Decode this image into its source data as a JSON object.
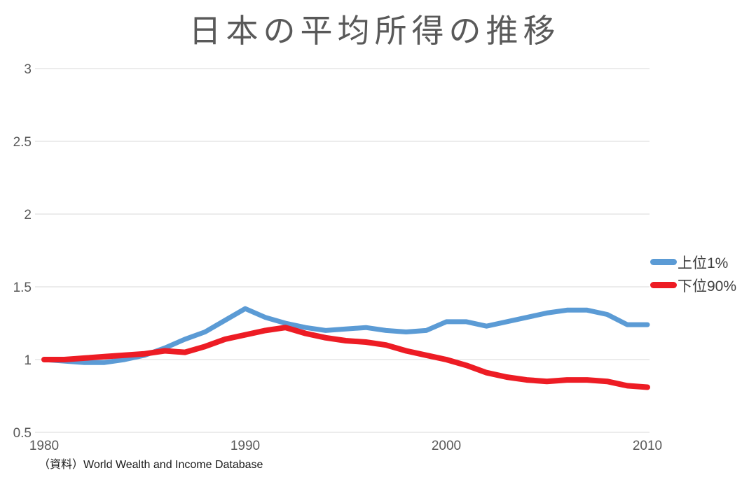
{
  "title": "日本の平均所得の推移",
  "source_note": "（資料）World Wealth and Income Database",
  "legend": {
    "items": [
      {
        "label": "上位1%",
        "color": "#5B9BD5"
      },
      {
        "label": "下位90%",
        "color": "#ED1C24"
      }
    ]
  },
  "colors": {
    "gridline": "#D9D9D9",
    "tick_text": "#595959",
    "title_text": "#595959",
    "series_top1": "#5B9BD5",
    "series_bottom90": "#ED1C24"
  },
  "chart_data": {
    "type": "line",
    "title": "日本の平均所得の推移",
    "xlabel": "",
    "ylabel": "",
    "xlim": [
      1980,
      2010
    ],
    "ylim": [
      0.5,
      3
    ],
    "grid": "horizontal-only",
    "legend_position": "right",
    "x_ticks": [
      "1980",
      "1990",
      "2000",
      "2010"
    ],
    "y_ticks": [
      "3",
      "2.5",
      "2",
      "1.5",
      "1",
      "0.5"
    ],
    "x": [
      1980,
      1981,
      1982,
      1983,
      1984,
      1985,
      1986,
      1987,
      1988,
      1989,
      1990,
      1991,
      1992,
      1993,
      1994,
      1995,
      1996,
      1997,
      1998,
      1999,
      2000,
      2001,
      2002,
      2003,
      2004,
      2005,
      2006,
      2007,
      2008,
      2009,
      2010
    ],
    "series": [
      {
        "name": "上位1%",
        "color": "#5B9BD5",
        "width": 7,
        "values": [
          1.0,
          0.99,
          0.98,
          0.98,
          1.0,
          1.03,
          1.08,
          1.14,
          1.19,
          1.27,
          1.35,
          1.29,
          1.25,
          1.22,
          1.2,
          1.21,
          1.22,
          1.2,
          1.19,
          1.2,
          1.26,
          1.26,
          1.23,
          1.26,
          1.29,
          1.32,
          1.34,
          1.34,
          1.31,
          1.24,
          1.24
        ]
      },
      {
        "name": "下位90%",
        "color": "#ED1C24",
        "width": 8,
        "values": [
          1.0,
          1.0,
          1.01,
          1.02,
          1.03,
          1.04,
          1.06,
          1.05,
          1.09,
          1.14,
          1.17,
          1.2,
          1.22,
          1.18,
          1.15,
          1.13,
          1.12,
          1.1,
          1.06,
          1.03,
          1.0,
          0.96,
          0.91,
          0.88,
          0.86,
          0.85,
          0.86,
          0.86,
          0.85,
          0.82,
          0.81
        ]
      }
    ]
  }
}
